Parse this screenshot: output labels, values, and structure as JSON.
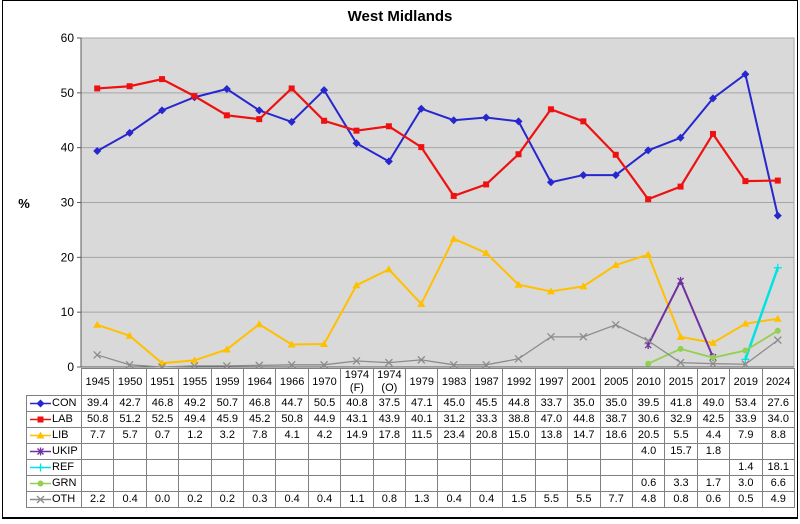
{
  "title": "West Midlands",
  "y_axis_label": "%",
  "chart_data": {
    "type": "line",
    "title": "West Midlands",
    "xlabel": "",
    "ylabel": "%",
    "ylim": [
      0,
      60
    ],
    "y_ticks": [
      0,
      10,
      20,
      30,
      40,
      50,
      60
    ],
    "grid": true,
    "plot_bg_color": "#d9d9d9",
    "grid_color": "#a6a6a6",
    "axis_color": "#595959",
    "legend_position": "table-left",
    "categories": [
      "1945",
      "1950",
      "1951",
      "1955",
      "1959",
      "1964",
      "1966",
      "1970",
      "1974 (F)",
      "1974 (O)",
      "1979",
      "1983",
      "1987",
      "1992",
      "1997",
      "2001",
      "2005",
      "2010",
      "2015",
      "2017",
      "2019",
      "2024"
    ],
    "series": [
      {
        "name": "CON",
        "color": "#2727cf",
        "marker": "diamond",
        "line_width": 2,
        "values": [
          39.4,
          42.7,
          46.8,
          49.2,
          50.7,
          46.8,
          44.7,
          50.5,
          40.8,
          37.5,
          47.1,
          45.0,
          45.5,
          44.8,
          33.7,
          35.0,
          35.0,
          39.5,
          41.8,
          49.0,
          53.4,
          27.6
        ]
      },
      {
        "name": "LAB",
        "color": "#ee1111",
        "marker": "square",
        "line_width": 2.2,
        "values": [
          50.8,
          51.2,
          52.5,
          49.4,
          45.9,
          45.2,
          50.8,
          44.9,
          43.1,
          43.9,
          40.1,
          31.2,
          33.3,
          38.8,
          47.0,
          44.8,
          38.7,
          30.6,
          32.9,
          42.5,
          33.9,
          34.0
        ]
      },
      {
        "name": "LIB",
        "color": "#ffc000",
        "marker": "triangle",
        "line_width": 2,
        "values": [
          7.7,
          5.7,
          0.7,
          1.2,
          3.2,
          7.8,
          4.1,
          4.2,
          14.9,
          17.8,
          11.5,
          23.4,
          20.8,
          15.0,
          13.8,
          14.7,
          18.6,
          20.5,
          5.5,
          4.4,
          7.9,
          8.8
        ]
      },
      {
        "name": "UKIP",
        "color": "#7030a0",
        "marker": "star",
        "line_width": 2,
        "values": [
          null,
          null,
          null,
          null,
          null,
          null,
          null,
          null,
          null,
          null,
          null,
          null,
          null,
          null,
          null,
          null,
          null,
          4.0,
          15.7,
          1.8,
          null,
          null
        ]
      },
      {
        "name": "REF",
        "color": "#00e3e3",
        "marker": "plus",
        "line_width": 2.5,
        "values": [
          null,
          null,
          null,
          null,
          null,
          null,
          null,
          null,
          null,
          null,
          null,
          null,
          null,
          null,
          null,
          null,
          null,
          null,
          null,
          null,
          1.4,
          18.1
        ]
      },
      {
        "name": "GRN",
        "color": "#92d050",
        "marker": "circle",
        "line_width": 1.8,
        "values": [
          null,
          null,
          null,
          null,
          null,
          null,
          null,
          null,
          null,
          null,
          null,
          null,
          null,
          null,
          null,
          null,
          null,
          0.6,
          3.3,
          1.7,
          3.0,
          6.6
        ]
      },
      {
        "name": "OTH",
        "color": "#8c8c8c",
        "marker": "x",
        "line_width": 1.3,
        "values": [
          2.2,
          0.4,
          0.0,
          0.2,
          0.2,
          0.3,
          0.4,
          0.4,
          1.1,
          0.8,
          1.3,
          0.4,
          0.4,
          1.5,
          5.5,
          5.5,
          7.7,
          4.8,
          0.8,
          0.6,
          0.5,
          4.9
        ]
      }
    ]
  }
}
